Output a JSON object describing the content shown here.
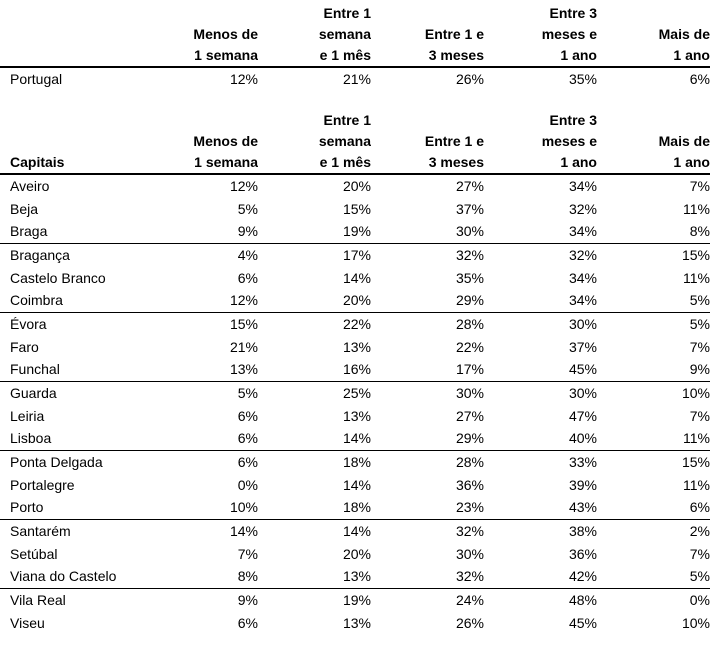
{
  "page": {
    "background": "#ffffff",
    "text_color": "#000000",
    "rule_color": "#000000"
  },
  "chart_data": [
    {
      "type": "table",
      "title": "",
      "row_header_label": "",
      "columns": [
        {
          "label": "Menos de 1 semana",
          "lines": [
            "",
            "Menos de",
            "1 semana"
          ]
        },
        {
          "label": "Entre 1 semana e 1 mês",
          "lines": [
            "Entre 1",
            "semana",
            "e 1 mês"
          ]
        },
        {
          "label": "Entre 1 e 3 meses",
          "lines": [
            "",
            "Entre 1 e",
            "3 meses"
          ]
        },
        {
          "label": "Entre 3 meses e 1 ano",
          "lines": [
            "Entre 3",
            "meses e",
            "1 ano"
          ]
        },
        {
          "label": "Mais de 1 ano",
          "lines": [
            "",
            "Mais de",
            "1 ano"
          ]
        }
      ],
      "rows": [
        {
          "name": "Portugal",
          "values": [
            "12%",
            "21%",
            "26%",
            "35%",
            "6%"
          ]
        }
      ]
    },
    {
      "type": "table",
      "title": "",
      "row_header_label": "Capitais",
      "columns": [
        {
          "label": "Menos de 1 semana",
          "lines": [
            "",
            "Menos de",
            "1 semana"
          ]
        },
        {
          "label": "Entre 1 semana e 1 mês",
          "lines": [
            "Entre 1",
            "semana",
            "e 1 mês"
          ]
        },
        {
          "label": "Entre 1 e 3 meses",
          "lines": [
            "",
            "Entre 1 e",
            "3 meses"
          ]
        },
        {
          "label": "Entre 3 meses e 1 ano",
          "lines": [
            "Entre 3",
            "meses e",
            "1 ano"
          ]
        },
        {
          "label": "Mais de 1 ano",
          "lines": [
            "",
            "Mais de",
            "1 ano"
          ]
        }
      ],
      "rows": [
        {
          "name": "Aveiro",
          "values": [
            "12%",
            "20%",
            "27%",
            "34%",
            "7%"
          ]
        },
        {
          "name": "Beja",
          "values": [
            "5%",
            "15%",
            "37%",
            "32%",
            "11%"
          ]
        },
        {
          "name": "Braga",
          "values": [
            "9%",
            "19%",
            "30%",
            "34%",
            "8%"
          ]
        },
        {
          "name": "Bragança",
          "values": [
            "4%",
            "17%",
            "32%",
            "32%",
            "15%"
          ]
        },
        {
          "name": "Castelo Branco",
          "values": [
            "6%",
            "14%",
            "35%",
            "34%",
            "11%"
          ]
        },
        {
          "name": "Coimbra",
          "values": [
            "12%",
            "20%",
            "29%",
            "34%",
            "5%"
          ]
        },
        {
          "name": "Évora",
          "values": [
            "15%",
            "22%",
            "28%",
            "30%",
            "5%"
          ]
        },
        {
          "name": "Faro",
          "values": [
            "21%",
            "13%",
            "22%",
            "37%",
            "7%"
          ]
        },
        {
          "name": "Funchal",
          "values": [
            "13%",
            "16%",
            "17%",
            "45%",
            "9%"
          ]
        },
        {
          "name": "Guarda",
          "values": [
            "5%",
            "25%",
            "30%",
            "30%",
            "10%"
          ]
        },
        {
          "name": "Leiria",
          "values": [
            "6%",
            "13%",
            "27%",
            "47%",
            "7%"
          ]
        },
        {
          "name": "Lisboa",
          "values": [
            "6%",
            "14%",
            "29%",
            "40%",
            "11%"
          ]
        },
        {
          "name": "Ponta Delgada",
          "values": [
            "6%",
            "18%",
            "28%",
            "33%",
            "15%"
          ]
        },
        {
          "name": "Portalegre",
          "values": [
            "0%",
            "14%",
            "36%",
            "39%",
            "11%"
          ]
        },
        {
          "name": "Porto",
          "values": [
            "10%",
            "18%",
            "23%",
            "43%",
            "6%"
          ]
        },
        {
          "name": "Santarém",
          "values": [
            "14%",
            "14%",
            "32%",
            "38%",
            "2%"
          ]
        },
        {
          "name": "Setúbal",
          "values": [
            "7%",
            "20%",
            "30%",
            "36%",
            "7%"
          ]
        },
        {
          "name": "Viana do Castelo",
          "values": [
            "8%",
            "13%",
            "32%",
            "42%",
            "5%"
          ]
        },
        {
          "name": "Vila Real",
          "values": [
            "9%",
            "19%",
            "24%",
            "48%",
            "0%"
          ]
        },
        {
          "name": "Viseu",
          "values": [
            "6%",
            "13%",
            "26%",
            "45%",
            "10%"
          ]
        }
      ],
      "group_separators_after": [
        "Braga",
        "Coimbra",
        "Funchal",
        "Lisboa",
        "Porto",
        "Viana do Castelo"
      ]
    }
  ]
}
